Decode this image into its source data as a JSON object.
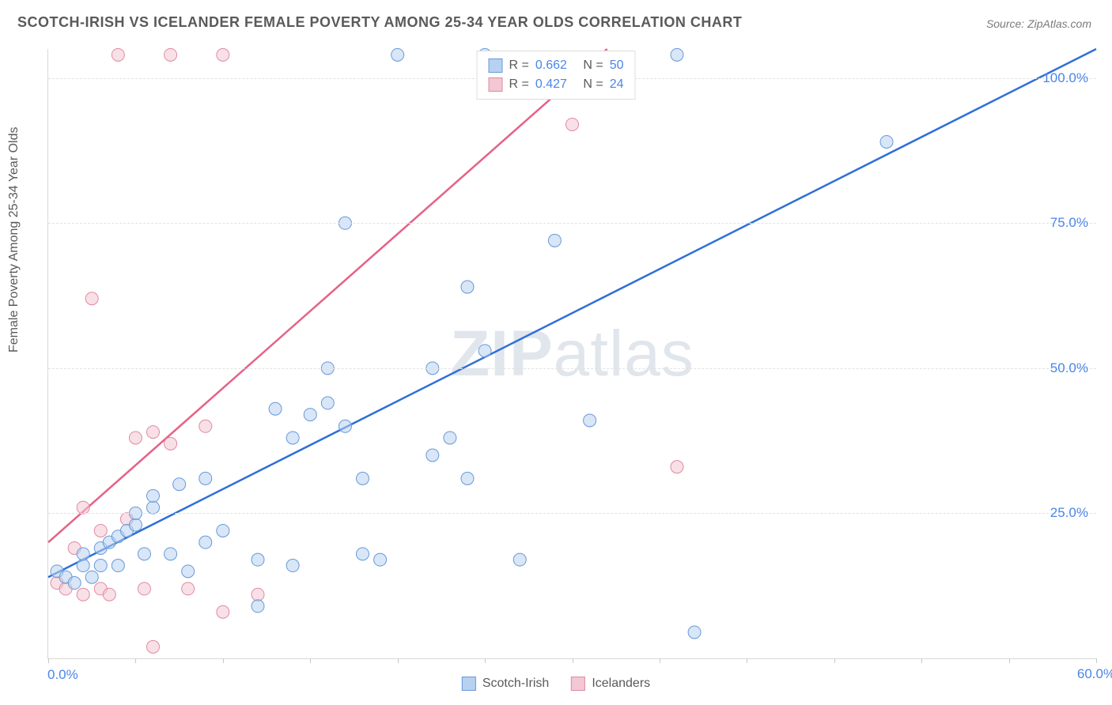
{
  "title": "SCOTCH-IRISH VS ICELANDER FEMALE POVERTY AMONG 25-34 YEAR OLDS CORRELATION CHART",
  "source_label": "Source:",
  "source_value": "ZipAtlas.com",
  "y_axis_label": "Female Poverty Among 25-34 Year Olds",
  "watermark_bold": "ZIP",
  "watermark_light": "atlas",
  "chart": {
    "type": "scatter",
    "background_color": "#ffffff",
    "grid_color": "#e2e2e2",
    "grid_style": "dashed",
    "axis_color": "#d8d8d8",
    "label_color": "#5a5a5a",
    "tick_color": "#4a86e8",
    "xlim": [
      0,
      60
    ],
    "ylim": [
      0,
      105
    ],
    "y_ticks": [
      {
        "value": 25,
        "label": "25.0%"
      },
      {
        "value": 50,
        "label": "50.0%"
      },
      {
        "value": 75,
        "label": "75.0%"
      },
      {
        "value": 100,
        "label": "100.0%"
      }
    ],
    "x_tick_values": [
      0,
      5,
      10,
      15,
      20,
      25,
      30,
      35,
      40,
      45,
      50,
      55,
      60
    ],
    "x_min_label": "0.0%",
    "x_max_label": "60.0%",
    "marker_radius": 8,
    "marker_opacity": 0.55,
    "line_width": 2.5,
    "title_fontsize": 18,
    "label_fontsize": 16,
    "watermark_fontsize": 82,
    "series": [
      {
        "name": "Scotch-Irish",
        "fill_color": "#b8d1f0",
        "stroke_color": "#6799d8",
        "line_color": "#2f6fd8",
        "correlation_R": "0.662",
        "correlation_N": "50",
        "regression": {
          "x1": 0,
          "y1": 14,
          "x2": 60,
          "y2": 105
        },
        "points": [
          [
            0.5,
            15
          ],
          [
            1,
            14
          ],
          [
            1.5,
            13
          ],
          [
            2,
            16
          ],
          [
            2,
            18
          ],
          [
            2.5,
            14
          ],
          [
            3,
            16
          ],
          [
            3,
            19
          ],
          [
            3.5,
            20
          ],
          [
            4,
            21
          ],
          [
            4,
            16
          ],
          [
            4.5,
            22
          ],
          [
            5,
            23
          ],
          [
            5,
            25
          ],
          [
            5.5,
            18
          ],
          [
            6,
            26
          ],
          [
            6,
            28
          ],
          [
            7,
            18
          ],
          [
            7.5,
            30
          ],
          [
            8,
            15
          ],
          [
            9,
            31
          ],
          [
            9,
            20
          ],
          [
            10,
            22
          ],
          [
            12,
            9
          ],
          [
            12,
            17
          ],
          [
            13,
            43
          ],
          [
            14,
            38
          ],
          [
            14,
            16
          ],
          [
            15,
            42
          ],
          [
            16,
            50
          ],
          [
            16,
            44
          ],
          [
            17,
            75
          ],
          [
            17,
            40
          ],
          [
            18,
            31
          ],
          [
            18,
            18
          ],
          [
            19,
            17
          ],
          [
            20,
            104
          ],
          [
            22,
            35
          ],
          [
            22,
            50
          ],
          [
            23,
            38
          ],
          [
            24,
            31
          ],
          [
            24,
            64
          ],
          [
            25,
            104
          ],
          [
            25,
            53
          ],
          [
            27,
            17
          ],
          [
            29,
            72
          ],
          [
            31,
            41
          ],
          [
            36,
            104
          ],
          [
            37,
            4.5
          ],
          [
            48,
            89
          ]
        ]
      },
      {
        "name": "Icelanders",
        "fill_color": "#f3c7d4",
        "stroke_color": "#e08aa3",
        "line_color": "#e56285",
        "correlation_R": "0.427",
        "correlation_N": "24",
        "regression": {
          "x1": 0,
          "y1": 20,
          "x2": 32,
          "y2": 105
        },
        "points": [
          [
            0.5,
            13
          ],
          [
            1,
            12
          ],
          [
            1.5,
            19
          ],
          [
            2,
            11
          ],
          [
            2,
            26
          ],
          [
            2.5,
            62
          ],
          [
            3,
            12
          ],
          [
            3,
            22
          ],
          [
            3.5,
            11
          ],
          [
            4,
            104
          ],
          [
            4.5,
            24
          ],
          [
            5,
            38
          ],
          [
            5.5,
            12
          ],
          [
            6,
            39
          ],
          [
            6,
            2
          ],
          [
            7,
            37
          ],
          [
            7,
            104
          ],
          [
            8,
            12
          ],
          [
            9,
            40
          ],
          [
            10,
            104
          ],
          [
            10,
            8
          ],
          [
            12,
            11
          ],
          [
            30,
            92
          ],
          [
            36,
            33
          ]
        ]
      }
    ]
  },
  "legend_box_text": {
    "R_label": "R =",
    "N_label": "N ="
  },
  "bottom_legend": [
    {
      "label": "Scotch-Irish",
      "fill": "#b8d1f0",
      "stroke": "#6799d8"
    },
    {
      "label": "Icelanders",
      "fill": "#f3c7d4",
      "stroke": "#e08aa3"
    }
  ]
}
